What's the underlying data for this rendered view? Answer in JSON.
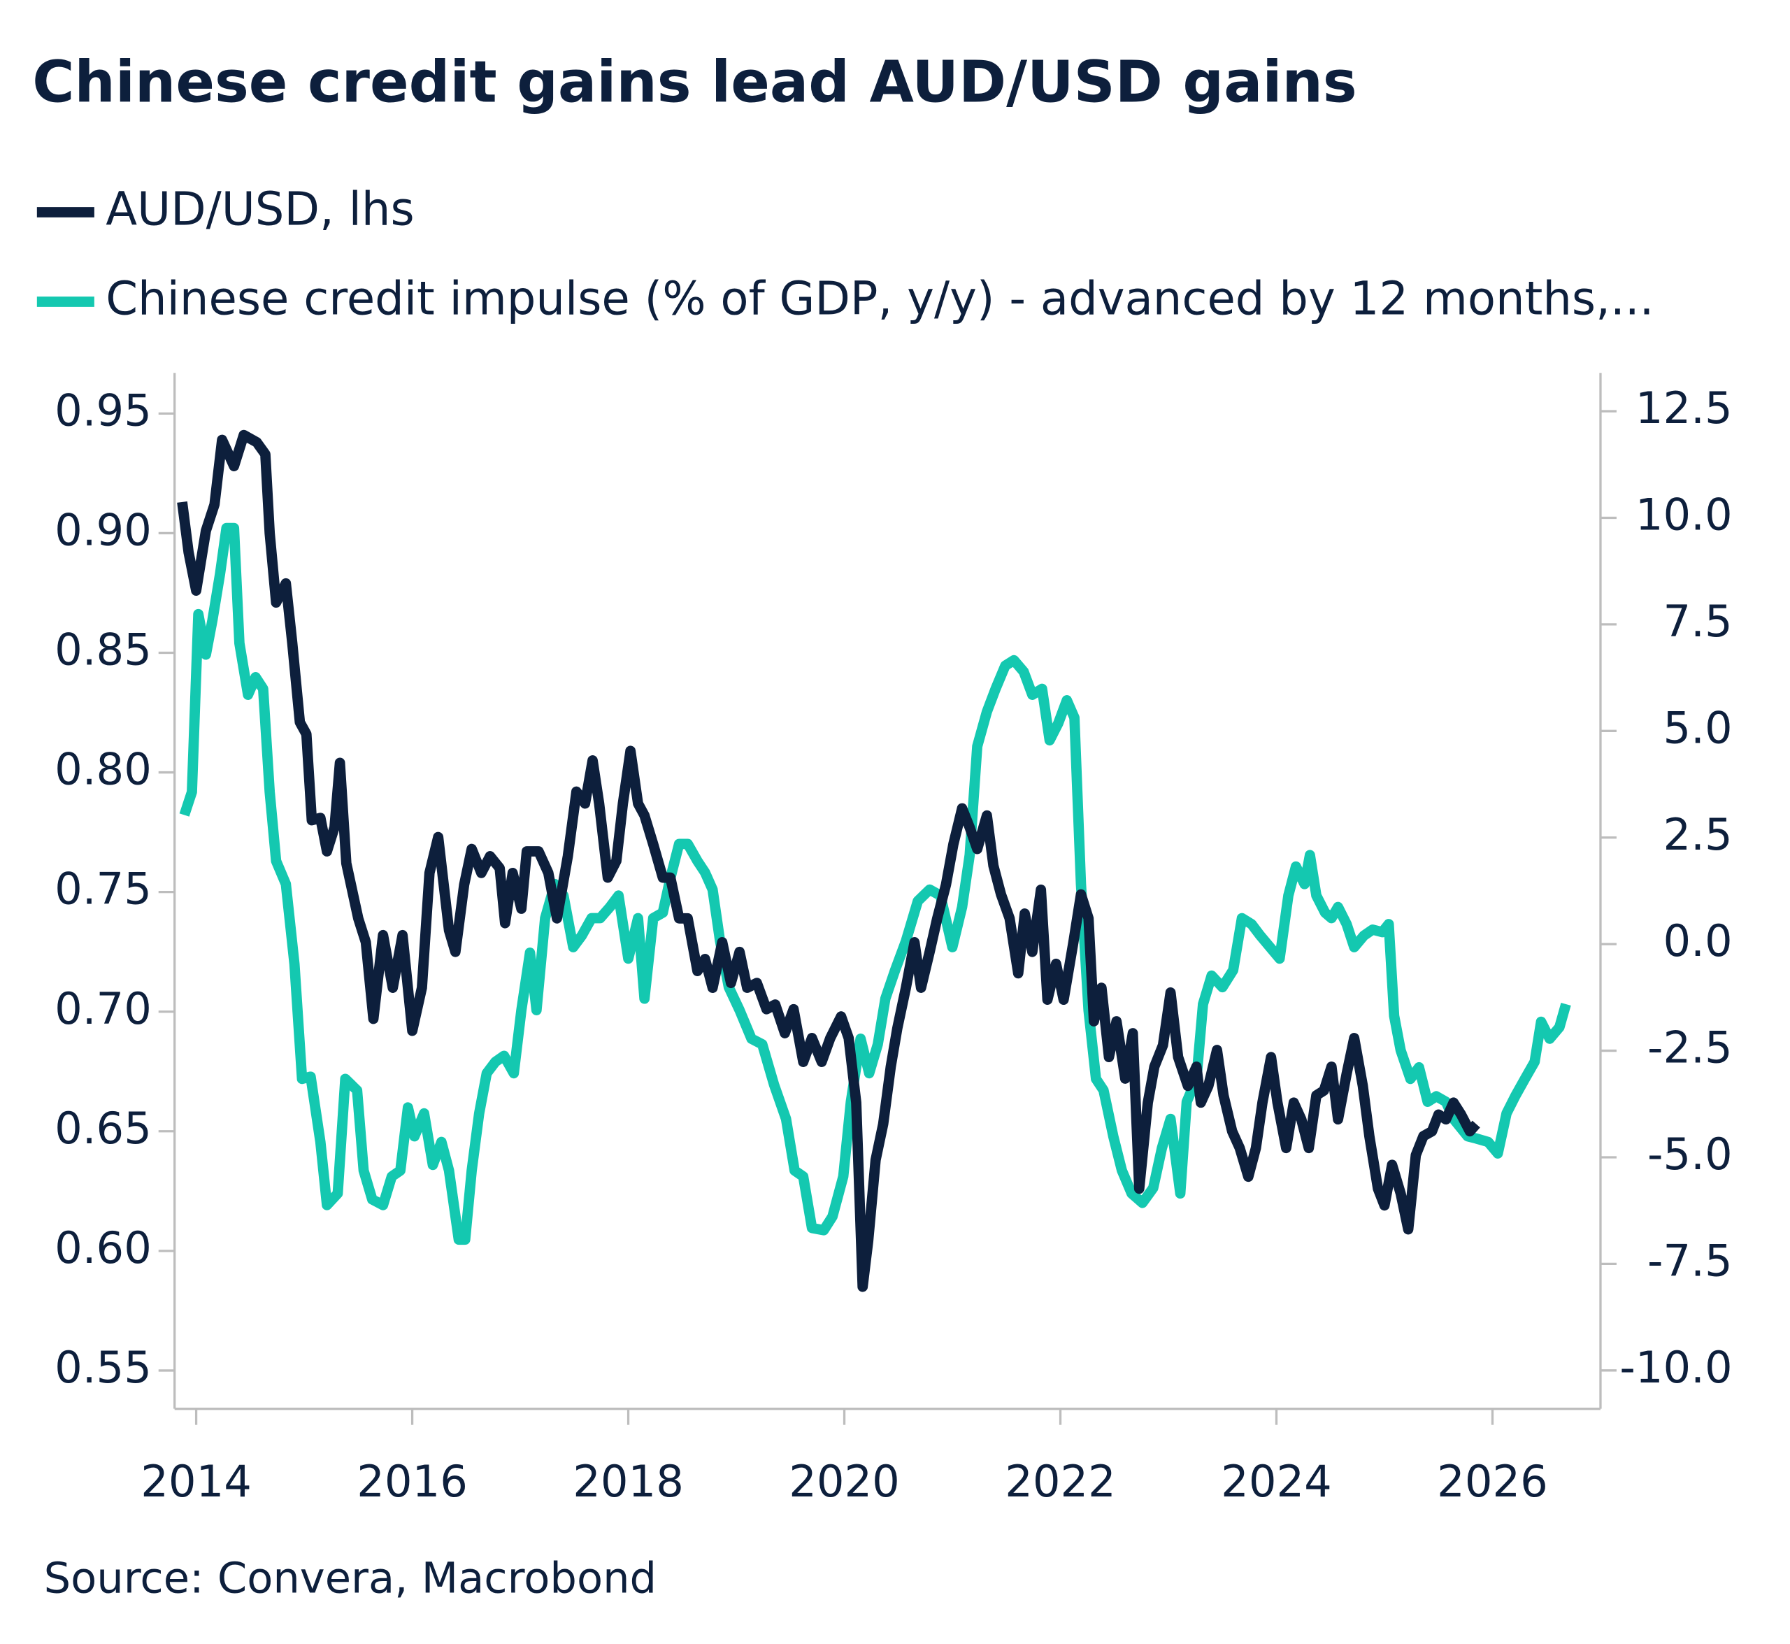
{
  "chart_data": {
    "type": "line",
    "title": "Chinese credit gains lead AUD/USD gains",
    "source": "Source: Convera, Macrobond",
    "xlim": [
      2013.8,
      2027.0
    ],
    "xticks": [
      2014,
      2016,
      2018,
      2020,
      2022,
      2024,
      2026
    ],
    "ylim": [
      0.534,
      0.967
    ],
    "yticks": [
      0.95,
      {
        "value": 0.9,
        "label": "0.90"
      },
      0.85,
      {
        "value": 0.8,
        "label": "0.80"
      },
      0.75,
      {
        "value": 0.7,
        "label": "0.70"
      },
      0.65,
      {
        "value": 0.6,
        "label": "0.60"
      },
      0.55
    ],
    "y2lim": [
      -10.9,
      13.4
    ],
    "y2ticks": [
      12.5,
      {
        "value": 10,
        "label": "10.0"
      },
      7.5,
      {
        "value": 5,
        "label": "5.0"
      },
      2.5,
      {
        "value": 0,
        "label": "0.0"
      },
      -2.5,
      {
        "value": -5,
        "label": "-5.0"
      },
      -7.5,
      {
        "value": -10,
        "label": "-10.0"
      }
    ],
    "series": [
      {
        "name": "AUD/USD, lhs",
        "color": "#0d1f3c",
        "axis": "y",
        "x": [
          2013.87,
          2013.93,
          2014.0,
          2014.09,
          2014.17,
          2014.24,
          2014.35,
          2014.44,
          2014.56,
          2014.64,
          2014.68,
          2014.74,
          2014.83,
          2014.89,
          2014.96,
          2015.02,
          2015.07,
          2015.15,
          2015.21,
          2015.28,
          2015.33,
          2015.39,
          2015.5,
          2015.57,
          2015.64,
          2015.73,
          2015.82,
          2015.91,
          2016.0,
          2016.09,
          2016.16,
          2016.24,
          2016.34,
          2016.4,
          2016.48,
          2016.55,
          2016.64,
          2016.72,
          2016.81,
          2016.86,
          2016.93,
          2017.01,
          2017.06,
          2017.17,
          2017.26,
          2017.34,
          2017.44,
          2017.52,
          2017.6,
          2017.67,
          2017.73,
          2017.81,
          2017.89,
          2017.95,
          2018.02,
          2018.09,
          2018.15,
          2018.23,
          2018.32,
          2018.39,
          2018.47,
          2018.55,
          2018.64,
          2018.71,
          2018.78,
          2018.87,
          2018.95,
          2019.03,
          2019.1,
          2019.19,
          2019.28,
          2019.36,
          2019.45,
          2019.53,
          2019.62,
          2019.7,
          2019.79,
          2019.87,
          2019.97,
          2020.04,
          2020.11,
          2020.17,
          2020.22,
          2020.29,
          2020.36,
          2020.43,
          2020.49,
          2020.57,
          2020.65,
          2020.71,
          2020.79,
          2020.86,
          2020.94,
          2021.01,
          2021.09,
          2021.16,
          2021.23,
          2021.32,
          2021.38,
          2021.45,
          2021.53,
          2021.61,
          2021.67,
          2021.74,
          2021.82,
          2021.88,
          2021.96,
          2022.03,
          2022.12,
          2022.19,
          2022.26,
          2022.31,
          2022.38,
          2022.45,
          2022.52,
          2022.6,
          2022.67,
          2022.73,
          2022.81,
          2022.87,
          2022.95,
          2023.02,
          2023.09,
          2023.18,
          2023.26,
          2023.3,
          2023.37,
          2023.45,
          2023.51,
          2023.59,
          2023.66,
          2023.74,
          2023.81,
          2023.87,
          2023.95,
          2024.01,
          2024.09,
          2024.16,
          2024.23,
          2024.3,
          2024.37,
          2024.44,
          2024.51,
          2024.57,
          2024.65,
          2024.72,
          2024.8,
          2024.86,
          2024.94,
          2025.0,
          2025.07,
          2025.15,
          2025.22,
          2025.29,
          2025.36,
          2025.44,
          2025.5,
          2025.57,
          2025.64,
          2025.71,
          2025.79,
          2025.85
        ],
        "values": [
          0.913,
          0.892,
          0.876,
          0.901,
          0.912,
          0.939,
          0.928,
          0.941,
          0.938,
          0.933,
          0.9,
          0.871,
          0.879,
          0.854,
          0.821,
          0.816,
          0.78,
          0.781,
          0.767,
          0.777,
          0.804,
          0.762,
          0.739,
          0.729,
          0.697,
          0.732,
          0.71,
          0.732,
          0.692,
          0.71,
          0.758,
          0.773,
          0.734,
          0.725,
          0.753,
          0.768,
          0.758,
          0.765,
          0.76,
          0.737,
          0.758,
          0.743,
          0.767,
          0.767,
          0.758,
          0.739,
          0.765,
          0.792,
          0.787,
          0.805,
          0.787,
          0.756,
          0.763,
          0.787,
          0.809,
          0.787,
          0.782,
          0.77,
          0.756,
          0.756,
          0.739,
          0.739,
          0.717,
          0.722,
          0.71,
          0.729,
          0.712,
          0.725,
          0.71,
          0.712,
          0.701,
          0.703,
          0.691,
          0.701,
          0.679,
          0.689,
          0.679,
          0.689,
          0.698,
          0.689,
          0.662,
          0.585,
          0.604,
          0.638,
          0.653,
          0.677,
          0.693,
          0.71,
          0.729,
          0.71,
          0.725,
          0.739,
          0.753,
          0.77,
          0.785,
          0.777,
          0.768,
          0.782,
          0.761,
          0.749,
          0.739,
          0.716,
          0.741,
          0.725,
          0.751,
          0.705,
          0.72,
          0.705,
          0.729,
          0.749,
          0.739,
          0.696,
          0.71,
          0.681,
          0.696,
          0.672,
          0.691,
          0.626,
          0.662,
          0.677,
          0.686,
          0.708,
          0.681,
          0.669,
          0.677,
          0.662,
          0.669,
          0.684,
          0.665,
          0.65,
          0.643,
          0.631,
          0.643,
          0.662,
          0.681,
          0.662,
          0.643,
          0.662,
          0.655,
          0.643,
          0.665,
          0.667,
          0.677,
          0.655,
          0.674,
          0.689,
          0.669,
          0.648,
          0.626,
          0.619,
          0.636,
          0.624,
          0.609,
          0.64,
          0.648,
          0.65,
          0.657,
          0.655,
          0.662,
          0.657,
          0.65,
          0.653
        ]
      },
      {
        "name": "Chinese credit impulse (% of GDP, y/y) - advanced by 12 months,...",
        "color": "#14c8b0",
        "axis": "y2",
        "x": [
          2013.89,
          2013.96,
          2014.02,
          2014.09,
          2014.15,
          2014.22,
          2014.28,
          2014.35,
          2014.4,
          2014.48,
          2014.55,
          2014.62,
          2014.68,
          2014.74,
          2014.83,
          2014.91,
          2014.98,
          2015.06,
          2015.15,
          2015.21,
          2015.31,
          2015.38,
          2015.49,
          2015.55,
          2015.63,
          2015.73,
          2015.81,
          2015.89,
          2015.96,
          2016.02,
          2016.11,
          2016.19,
          2016.27,
          2016.34,
          2016.43,
          2016.49,
          2016.55,
          2016.62,
          2016.69,
          2016.77,
          2016.85,
          2016.94,
          2017.01,
          2017.09,
          2017.15,
          2017.23,
          2017.32,
          2017.4,
          2017.49,
          2017.57,
          2017.66,
          2017.74,
          2017.83,
          2017.91,
          2018.0,
          2018.09,
          2018.15,
          2018.23,
          2018.32,
          2018.39,
          2018.47,
          2018.55,
          2018.64,
          2018.71,
          2018.78,
          2018.85,
          2018.93,
          2019.03,
          2019.14,
          2019.24,
          2019.35,
          2019.46,
          2019.54,
          2019.62,
          2019.7,
          2019.81,
          2019.89,
          2019.99,
          2020.06,
          2020.15,
          2020.23,
          2020.31,
          2020.38,
          2020.47,
          2020.57,
          2020.68,
          2020.79,
          2020.89,
          2021.0,
          2021.09,
          2021.16,
          2021.23,
          2021.32,
          2021.4,
          2021.49,
          2021.57,
          2021.66,
          2021.74,
          2021.83,
          2021.9,
          2021.98,
          2022.06,
          2022.13,
          2022.19,
          2022.26,
          2022.33,
          2022.4,
          2022.49,
          2022.57,
          2022.66,
          2022.76,
          2022.86,
          2022.94,
          2023.02,
          2023.11,
          2023.17,
          2023.26,
          2023.32,
          2023.4,
          2023.5,
          2023.6,
          2023.68,
          2023.77,
          2023.85,
          2023.94,
          2024.03,
          2024.11,
          2024.18,
          2024.26,
          2024.31,
          2024.37,
          2024.45,
          2024.51,
          2024.57,
          2024.65,
          2024.72,
          2024.81,
          2024.89,
          2024.98,
          2025.04,
          2025.09,
          2025.15,
          2025.24,
          2025.32,
          2025.4,
          2025.48,
          2025.57,
          2025.64,
          2025.77,
          2025.85,
          2025.96,
          2026.05,
          2026.13,
          2026.21,
          2026.3,
          2026.39,
          2026.45,
          2026.53,
          2026.62,
          2026.68
        ],
        "values": [
          3.03,
          3.57,
          7.74,
          6.79,
          7.6,
          8.68,
          9.76,
          9.76,
          7.06,
          5.85,
          6.26,
          5.99,
          3.57,
          1.95,
          1.41,
          -0.47,
          -3.16,
          -3.11,
          -4.64,
          -6.12,
          -5.85,
          -3.16,
          -3.43,
          -5.31,
          -5.99,
          -6.12,
          -5.45,
          -5.31,
          -3.83,
          -4.51,
          -3.97,
          -5.18,
          -4.64,
          -5.31,
          -6.93,
          -6.93,
          -5.31,
          -3.97,
          -3.03,
          -2.76,
          -2.62,
          -3.03,
          -1.55,
          -0.2,
          -1.55,
          0.61,
          1.41,
          1.14,
          -0.07,
          0.2,
          0.61,
          0.61,
          0.87,
          1.14,
          -0.34,
          0.61,
          -1.28,
          0.61,
          0.74,
          1.55,
          2.35,
          2.35,
          1.95,
          1.68,
          1.28,
          0.07,
          -1.01,
          -1.55,
          -2.22,
          -2.35,
          -3.3,
          -4.1,
          -5.31,
          -5.45,
          -6.66,
          -6.71,
          -6.39,
          -5.45,
          -3.7,
          -2.22,
          -3.03,
          -2.35,
          -1.28,
          -0.61,
          0.07,
          1.01,
          1.28,
          1.14,
          -0.07,
          0.87,
          2.09,
          4.64,
          5.45,
          5.99,
          6.53,
          6.66,
          6.39,
          5.85,
          5.99,
          4.78,
          5.18,
          5.72,
          5.31,
          1.41,
          -1.55,
          -3.16,
          -3.43,
          -4.51,
          -5.31,
          -5.85,
          -6.07,
          -5.72,
          -4.78,
          -4.1,
          -5.85,
          -3.7,
          -3.16,
          -1.41,
          -0.74,
          -1.01,
          -0.61,
          0.61,
          0.47,
          0.2,
          -0.07,
          -0.34,
          1.14,
          1.82,
          1.41,
          2.09,
          1.14,
          0.74,
          0.61,
          0.87,
          0.47,
          -0.07,
          0.2,
          0.34,
          0.28,
          0.47,
          -1.68,
          -2.49,
          -3.16,
          -2.89,
          -3.7,
          -3.57,
          -3.7,
          -4.1,
          -4.51,
          -4.56,
          -4.64,
          -4.91,
          -3.97,
          -3.57,
          -3.16,
          -2.76,
          -1.82,
          -2.22,
          -1.95,
          -1.41
        ]
      }
    ]
  }
}
